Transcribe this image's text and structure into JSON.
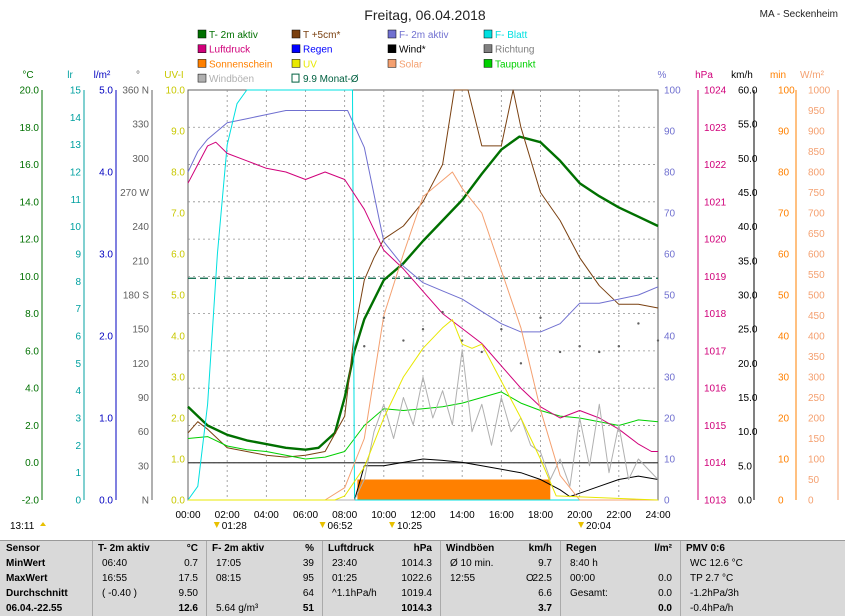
{
  "header": {
    "title": "Freitag, 06.04.2018",
    "location": "MA - Seckenheim"
  },
  "legend": [
    {
      "label": "T- 2m aktiv",
      "color": "#007000",
      "type": "box"
    },
    {
      "label": "T +5cm*",
      "color": "#7a4010",
      "type": "box"
    },
    {
      "label": "F- 2m aktiv",
      "color": "#7070d0",
      "type": "box"
    },
    {
      "label": "F- Blatt",
      "color": "#00e0e0",
      "type": "box"
    },
    {
      "label": "Luftdruck",
      "color": "#d0007a",
      "type": "box"
    },
    {
      "label": "Regen",
      "color": "#0000ff",
      "type": "box"
    },
    {
      "label": "Wind*",
      "color": "#000000",
      "type": "box"
    },
    {
      "label": "Richtung",
      "color": "#808080",
      "type": "box"
    },
    {
      "label": "Sonnenschein",
      "color": "#ff8000",
      "type": "box"
    },
    {
      "label": "UV",
      "color": "#e8e800",
      "type": "box"
    },
    {
      "label": "Solar",
      "color": "#f4a070",
      "type": "box"
    },
    {
      "label": "Taupunkt",
      "color": "#00d000",
      "type": "box"
    },
    {
      "label": "Windböen",
      "color": "#b0b0b0",
      "type": "box"
    },
    {
      "label": "9.9 Monat-Ø",
      "color": "#006040",
      "type": "open"
    }
  ],
  "chart_data": {
    "type": "line",
    "title": "Freitag, 06.04.2018",
    "xlabel": "",
    "x_ticks": [
      "00:00",
      "02:00",
      "04:00",
      "06:00",
      "08:00",
      "10:00",
      "12:00",
      "14:00",
      "16:00",
      "18:00",
      "20:00",
      "22:00",
      "24:00"
    ],
    "xlim": [
      0,
      24
    ],
    "axes": [
      {
        "unit": "°C",
        "color": "#007000",
        "min": -2,
        "max": 20,
        "ticks": [
          "-2.0",
          "0.0",
          "2.0",
          "4.0",
          "6.0",
          "8.0",
          "10.0",
          "12.0",
          "14.0",
          "16.0",
          "18.0",
          "20.0"
        ]
      },
      {
        "unit": "lr",
        "color": "#00a0a0",
        "min": 0,
        "max": 15,
        "ticks": [
          "0",
          "1",
          "2",
          "3",
          "4",
          "5",
          "6",
          "7",
          "8",
          "9",
          "10",
          "11",
          "12",
          "13",
          "14",
          "15"
        ]
      },
      {
        "unit": "l/m²",
        "color": "#0000c0",
        "min": 0,
        "max": 5,
        "ticks": [
          "0.0",
          "1.0",
          "2.0",
          "3.0",
          "4.0",
          "5.0"
        ]
      },
      {
        "unit": "°",
        "color": "#606060",
        "min": 0,
        "max": 360,
        "ticks": [
          "N",
          "30",
          "60",
          "90",
          "120",
          "150",
          "180 S",
          "210",
          "240",
          "270 W",
          "300",
          "330",
          "360 N"
        ]
      },
      {
        "unit": "UV-I",
        "color": "#c8c800",
        "min": 0,
        "max": 10,
        "ticks": [
          "0.0",
          "1.0",
          "2.0",
          "3.0",
          "4.0",
          "5.0",
          "6.0",
          "7.0",
          "8.0",
          "9.0",
          "10.0"
        ]
      },
      {
        "unit": "%",
        "color": "#7070d0",
        "min": 0,
        "max": 100,
        "ticks": [
          "0",
          "10",
          "20",
          "30",
          "40",
          "50",
          "60",
          "70",
          "80",
          "90",
          "100"
        ]
      },
      {
        "unit": "hPa",
        "color": "#d0007a",
        "min": 1013,
        "max": 1024,
        "ticks": [
          "1013",
          "1014",
          "1015",
          "1016",
          "1017",
          "1018",
          "1019",
          "1020",
          "1021",
          "1022",
          "1023",
          "1024"
        ]
      },
      {
        "unit": "km/h",
        "color": "#000000",
        "min": 0,
        "max": 60,
        "ticks": [
          "0.0",
          "5.0",
          "10.0",
          "15.0",
          "20.0",
          "25.0",
          "30.0",
          "35.0",
          "40.0",
          "45.0",
          "50.0",
          "55.0",
          "60.0"
        ]
      },
      {
        "unit": "min",
        "color": "#ff8000",
        "min": 0,
        "max": 100,
        "ticks": [
          "0",
          "10",
          "20",
          "30",
          "40",
          "50",
          "60",
          "70",
          "80",
          "90",
          "100"
        ]
      },
      {
        "unit": "W/m²",
        "color": "#f4a070",
        "min": 0,
        "max": 1000,
        "ticks": [
          "0",
          "50",
          "100",
          "150",
          "200",
          "250",
          "300",
          "350",
          "400",
          "450",
          "500",
          "550",
          "600",
          "650",
          "700",
          "750",
          "800",
          "850",
          "900",
          "950",
          "1000"
        ]
      }
    ],
    "series": [
      {
        "name": "T- 2m aktiv",
        "axis": "°C",
        "color": "#007000",
        "x": [
          0,
          1,
          2,
          3,
          4,
          5,
          6,
          6.67,
          7.5,
          8,
          8.5,
          9,
          10,
          11,
          12,
          13,
          14,
          15,
          16,
          16.92,
          18,
          19,
          20,
          21,
          22,
          23,
          24
        ],
        "y": [
          3.0,
          2.0,
          1.5,
          1.2,
          1.0,
          0.8,
          0.7,
          0.8,
          1.6,
          3.5,
          6.0,
          7.7,
          9.8,
          10.7,
          11.9,
          13.0,
          14.1,
          15.5,
          16.8,
          17.5,
          17.2,
          16.2,
          15.0,
          14.3,
          13.7,
          13.2,
          12.7
        ]
      },
      {
        "name": "T +5cm*",
        "axis": "°C",
        "color": "#7a4010",
        "x": [
          0,
          0.5,
          1,
          2,
          3,
          4,
          5,
          6,
          7,
          8,
          8.5,
          9,
          9.5,
          10,
          11,
          12,
          13,
          13.6,
          14.3,
          15,
          16,
          16.6,
          17,
          18,
          19,
          20,
          21,
          22,
          23,
          24
        ],
        "y": [
          1.6,
          2.2,
          1.8,
          0.8,
          0.6,
          0.4,
          0.3,
          0.4,
          0.6,
          2.5,
          7.0,
          9.8,
          11.0,
          12.0,
          12.7,
          14.0,
          16.0,
          22.0,
          22.0,
          17.0,
          17.0,
          22.0,
          18.0,
          14.5,
          13.0,
          11.0,
          9.5,
          8.5,
          8.5,
          8.3
        ]
      },
      {
        "name": "Taupunkt",
        "axis": "°C",
        "color": "#00d000",
        "x": [
          0,
          1,
          2,
          3,
          4,
          5,
          6,
          7,
          8,
          9,
          10,
          11,
          12,
          13,
          14,
          15,
          16,
          17,
          18,
          19,
          20,
          21,
          22,
          23,
          24
        ],
        "y": [
          1.3,
          1.4,
          0.9,
          0.7,
          0.6,
          0.4,
          0.2,
          0.3,
          0.6,
          2.0,
          2.9,
          2.8,
          2.9,
          3.0,
          3.2,
          3.5,
          3.8,
          3.2,
          2.8,
          2.5,
          2.4,
          2.2,
          2.0,
          2.3,
          2.2
        ]
      },
      {
        "name": "F- 2m aktiv",
        "axis": "%",
        "color": "#7070d0",
        "x": [
          0,
          0.5,
          1,
          2,
          3,
          4,
          5,
          6,
          7,
          8,
          8.15,
          9,
          10,
          11,
          12,
          13,
          14,
          15,
          16,
          17,
          18,
          19,
          20,
          21,
          22,
          23,
          24
        ],
        "y": [
          80,
          85,
          88,
          92,
          93,
          94,
          95,
          95,
          95,
          95,
          95,
          86,
          63,
          57,
          53,
          51,
          49,
          46,
          43,
          41,
          41,
          43,
          48,
          48,
          49,
          50,
          52
        ]
      },
      {
        "name": "F- Blatt",
        "axis": "lr",
        "color": "#00e0e0",
        "x": [
          0,
          0.5,
          1,
          1.5,
          2,
          2.5,
          3,
          4,
          5,
          6,
          7,
          8,
          8.4,
          8.5,
          24
        ],
        "y": [
          0,
          0.5,
          3.5,
          9.0,
          13.0,
          14.5,
          15,
          15,
          15,
          15,
          15,
          15,
          15,
          0,
          0
        ]
      },
      {
        "name": "Luftdruck",
        "axis": "hPa",
        "color": "#d0007a",
        "x": [
          0,
          0.5,
          1,
          1.42,
          2,
          3,
          4,
          5,
          6,
          7,
          8,
          9,
          10,
          11,
          12,
          13,
          14,
          15,
          16,
          17,
          18,
          19,
          20,
          21,
          22,
          23,
          23.67,
          24
        ],
        "y": [
          1021.5,
          1022.0,
          1022.5,
          1022.6,
          1022.3,
          1022.1,
          1021.9,
          1021.8,
          1021.6,
          1021.8,
          1021.6,
          1020.8,
          1019.7,
          1019.2,
          1018.6,
          1018.0,
          1017.6,
          1017.2,
          1016.6,
          1016.0,
          1015.5,
          1015.2,
          1015.4,
          1015.2,
          1014.9,
          1014.5,
          1014.3,
          1014.3
        ]
      },
      {
        "name": "Wind*",
        "axis": "km/h",
        "color": "#000000",
        "x": [
          0,
          8.5,
          9,
          10,
          11,
          12,
          13,
          14,
          15,
          16,
          17,
          18,
          19,
          19.5,
          20,
          21,
          22,
          23,
          24
        ],
        "y": [
          0,
          0,
          5,
          5,
          5.5,
          6,
          5.8,
          5.5,
          5,
          4.5,
          4,
          3,
          1.5,
          0.5,
          1,
          2,
          3,
          3.5,
          3
        ]
      },
      {
        "name": "Windböen",
        "axis": "km/h",
        "color": "#b0b0b0",
        "x": [
          0,
          8.5,
          9,
          9.5,
          10,
          10.5,
          11,
          11.5,
          12,
          12.5,
          13,
          13.5,
          14,
          14.5,
          15,
          15.5,
          16,
          16.5,
          17,
          17.5,
          18,
          18.5,
          19,
          19.5,
          20,
          20.5,
          21,
          21.5,
          22,
          22.5,
          23,
          24
        ],
        "y": [
          0,
          0,
          3,
          10,
          14,
          9,
          15,
          11,
          18,
          12,
          16,
          11,
          22,
          10,
          14,
          8,
          15,
          10,
          12,
          8,
          7,
          3,
          6,
          2,
          12,
          5,
          14,
          4,
          11,
          3,
          6,
          3
        ]
      },
      {
        "name": "Solar",
        "axis": "W/m²",
        "color": "#f4a070",
        "x": [
          0,
          7,
          8,
          9,
          10,
          11,
          12,
          12.5,
          13,
          13.5,
          14,
          15,
          16,
          17,
          18,
          19,
          20,
          24
        ],
        "y": [
          0,
          0,
          30,
          150,
          450,
          600,
          740,
          760,
          780,
          800,
          760,
          700,
          560,
          420,
          220,
          60,
          0,
          0
        ]
      },
      {
        "name": "UV",
        "axis": "UV-I",
        "color": "#e8e800",
        "x": [
          0,
          7.5,
          8,
          9,
          10,
          11,
          12,
          13,
          13.5,
          14,
          14.5,
          15,
          16,
          17,
          18,
          18.8,
          24
        ],
        "y": [
          0,
          0,
          0.1,
          0.8,
          2.0,
          3.0,
          3.7,
          4.2,
          4.4,
          3.8,
          3.7,
          3.8,
          2.9,
          2.0,
          1.0,
          0.1,
          0
        ]
      },
      {
        "name": "Richtung",
        "axis": "°",
        "color": "#606060",
        "x": [
          9,
          10,
          11,
          12,
          13,
          14,
          15,
          16,
          17,
          18,
          19,
          20,
          21,
          22,
          23,
          24
        ],
        "y": [
          135,
          160,
          140,
          150,
          165,
          140,
          130,
          150,
          120,
          160,
          130,
          135,
          130,
          135,
          155,
          140
        ]
      }
    ],
    "reference_lines": [
      {
        "name": "9.9 Monat-Ø",
        "axis": "°C",
        "value": 9.9,
        "color": "#006040"
      },
      {
        "name": "Frost",
        "axis": "°C",
        "value": 0,
        "color": "#404040"
      }
    ],
    "sunshine_bars": {
      "axis": "min",
      "color": "#ff8000",
      "from": 8.65,
      "to": 18.5,
      "value": 5
    },
    "markers": [
      {
        "label": "01:28",
        "time": 1.47
      },
      {
        "label": "06:52",
        "time": 6.87
      },
      {
        "label": "10:25",
        "time": 10.42
      },
      {
        "label": "20:04",
        "time": 20.07
      }
    ],
    "corner_label": "13:11"
  },
  "footer": {
    "columns": [
      {
        "header": "Sensor",
        "unit": "",
        "rows": [
          [
            "MinWert",
            "",
            ""
          ],
          [
            "MaxWert",
            "",
            ""
          ],
          [
            "Durchschnitt",
            "",
            ""
          ],
          [
            "06.04.-22.55",
            "",
            ""
          ]
        ]
      },
      {
        "header": "T- 2m aktiv",
        "unit": "°C",
        "rows": [
          [
            "06:40",
            "",
            "0.7"
          ],
          [
            "16:55",
            "",
            "17.5"
          ],
          [
            "( -0.40 )",
            "",
            "9.50"
          ],
          [
            "",
            "",
            "12.6"
          ]
        ]
      },
      {
        "header": "F- 2m aktiv",
        "unit": "%",
        "rows": [
          [
            "17:05",
            "",
            "39"
          ],
          [
            "08:15",
            "",
            "95"
          ],
          [
            "",
            "",
            "64"
          ],
          [
            "5.64 g/m³",
            "",
            "51"
          ]
        ]
      },
      {
        "header": "Luftdruck",
        "unit": "hPa",
        "rows": [
          [
            "23:40",
            "",
            "1014.3"
          ],
          [
            "01:25",
            "",
            "1022.6"
          ],
          [
            "^1.1hPa/h",
            "",
            "1019.4"
          ],
          [
            "",
            "",
            "1014.3"
          ]
        ]
      },
      {
        "header": "Windböen",
        "unit": "km/h",
        "rows": [
          [
            "Ø 10 min.",
            "",
            "9.7"
          ],
          [
            "12:55",
            "O",
            "22.5"
          ],
          [
            "",
            "",
            "6.6"
          ],
          [
            "",
            "",
            "3.7"
          ]
        ]
      },
      {
        "header": "Regen",
        "unit": "l/m²",
        "rows": [
          [
            "8:40 h",
            "",
            ""
          ],
          [
            "00:00",
            "",
            "0.0"
          ],
          [
            "Gesamt:",
            "",
            "0.0"
          ],
          [
            "",
            "",
            "0.0"
          ]
        ]
      },
      {
        "header": "PMV 0:6",
        "unit": "",
        "rows": [
          [
            "WC 12.6 °C",
            "",
            ""
          ],
          [
            "TP 2.7 °C",
            "",
            ""
          ],
          [
            "-1.2hPa/3h",
            "",
            ""
          ],
          [
            "-0.4hPa/h",
            "",
            ""
          ]
        ]
      }
    ]
  }
}
